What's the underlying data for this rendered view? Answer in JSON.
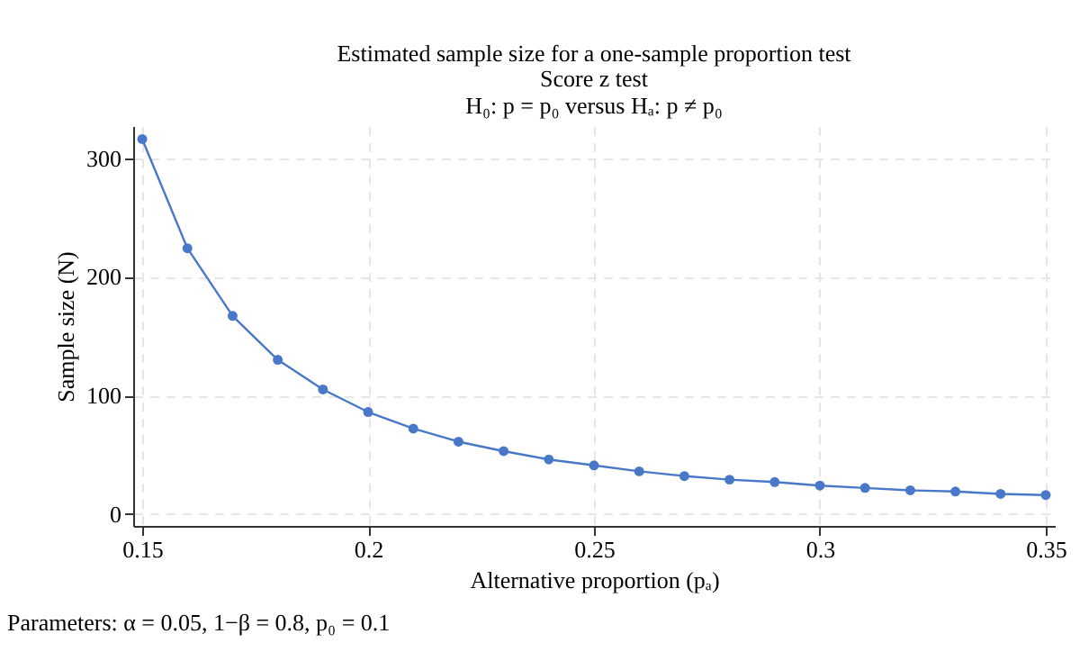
{
  "chart_data": {
    "type": "line",
    "title": "Estimated sample size for a one-sample proportion test",
    "subtitle": "Score z test\nH₀: p = p₀ versus Hₐ: p ≠ p₀",
    "xlabel": "Alternative proportion (pₐ)",
    "ylabel": "Sample size (N)",
    "annotations": [
      "Parameters: α = 0.05, 1−β = 0.8, p₀ = 0.1"
    ],
    "x": [
      0.15,
      0.16,
      0.17,
      0.18,
      0.19,
      0.2,
      0.21,
      0.22,
      0.23,
      0.24,
      0.25,
      0.26,
      0.27,
      0.28,
      0.29,
      0.3,
      0.31,
      0.32,
      0.33,
      0.34,
      0.35
    ],
    "series": [
      {
        "color": "#4a78c8",
        "values": [
          316,
          224,
          167,
          130,
          105,
          86,
          72,
          61,
          53,
          46,
          41,
          36,
          32,
          29,
          27,
          24,
          22,
          20,
          19,
          17,
          16
        ]
      }
    ],
    "xlim": [
      0.148,
      0.352
    ],
    "xticks": [
      0.15,
      0.2,
      0.25,
      0.3,
      0.35
    ],
    "ylim": [
      -10,
      327
    ],
    "yticks": [
      0,
      100,
      200,
      300
    ],
    "grid": true,
    "marker": "circle",
    "line_style": "solid",
    "legend": false
  }
}
